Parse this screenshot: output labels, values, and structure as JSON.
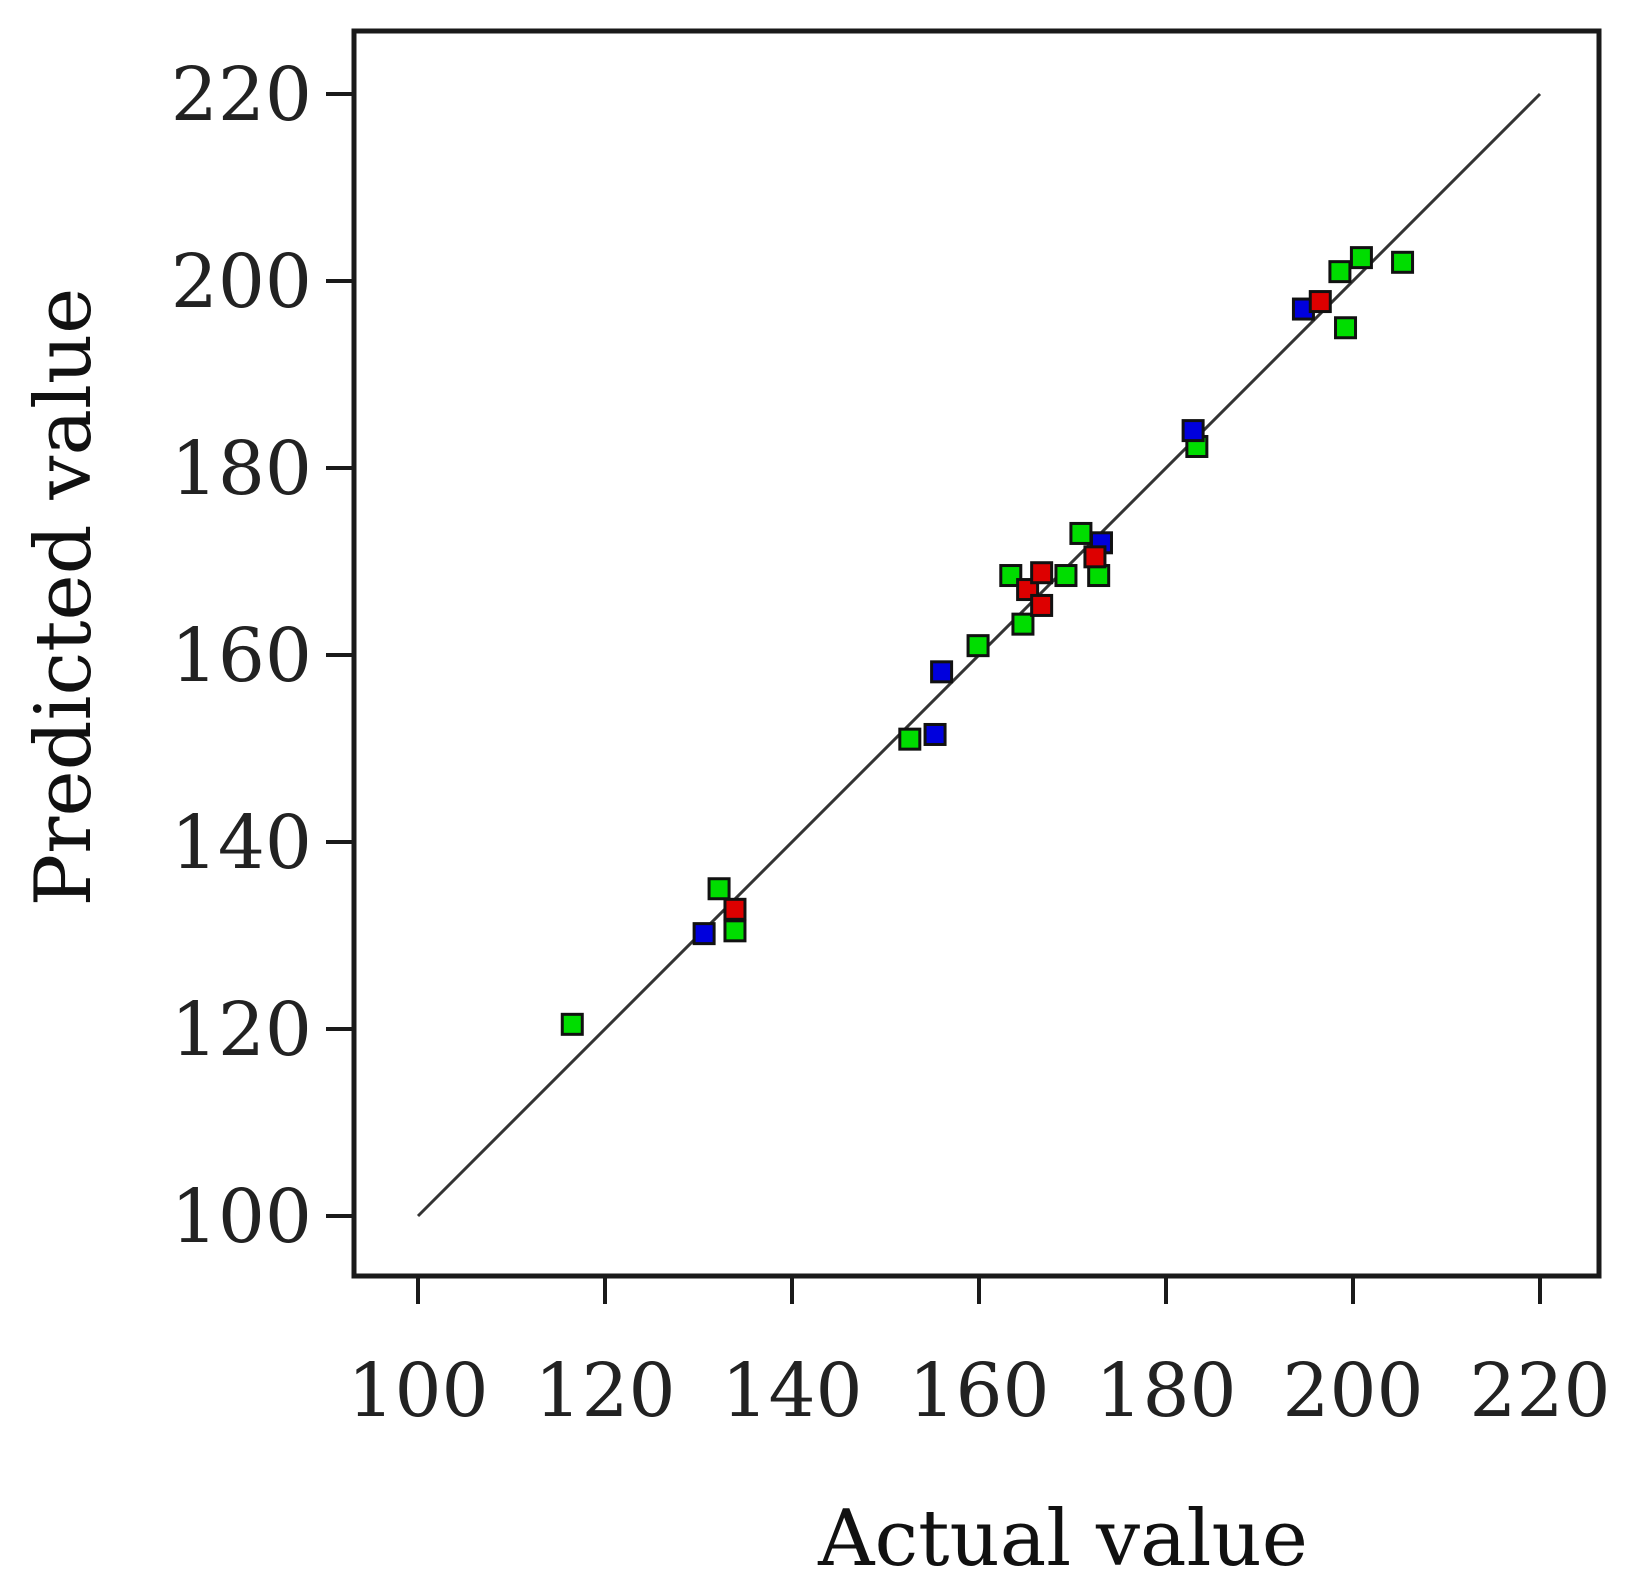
{
  "chart_data": {
    "type": "scatter",
    "title": "",
    "xlabel": "Actual value",
    "ylabel": "Predicted value",
    "xlim": [
      100,
      220
    ],
    "ylim": [
      100,
      220
    ],
    "xticks": [
      100,
      120,
      140,
      160,
      180,
      200,
      220
    ],
    "yticks": [
      100,
      120,
      140,
      160,
      180,
      200,
      220
    ],
    "grid": false,
    "legend": "none",
    "reference_line": {
      "from": [
        100,
        100
      ],
      "to": [
        220,
        220
      ],
      "color": "#333333"
    },
    "series": [
      {
        "color": "#00dd00",
        "points": [
          [
            116.5,
            120.5
          ],
          [
            132.2,
            135.0
          ],
          [
            133.9,
            130.5
          ],
          [
            152.6,
            151.0
          ],
          [
            159.9,
            161.0
          ],
          [
            163.4,
            168.5
          ],
          [
            164.7,
            163.3
          ],
          [
            169.3,
            168.5
          ],
          [
            170.9,
            173.0
          ],
          [
            172.8,
            168.5
          ],
          [
            183.3,
            182.3
          ],
          [
            198.6,
            201.0
          ],
          [
            199.2,
            195.0
          ],
          [
            200.9,
            202.5
          ],
          [
            205.3,
            202.0
          ]
        ]
      },
      {
        "color": "#0000dd",
        "points": [
          [
            130.6,
            130.2
          ],
          [
            155.3,
            151.5
          ],
          [
            156.0,
            158.2
          ],
          [
            173.1,
            172.0
          ],
          [
            182.9,
            184.0
          ],
          [
            194.7,
            197.0
          ]
        ]
      },
      {
        "color": "#dd0000",
        "points": [
          [
            133.9,
            132.8
          ],
          [
            165.2,
            167.0
          ],
          [
            166.7,
            165.3
          ],
          [
            166.7,
            168.8
          ],
          [
            172.4,
            170.5
          ],
          [
            196.5,
            197.8
          ]
        ]
      }
    ]
  }
}
